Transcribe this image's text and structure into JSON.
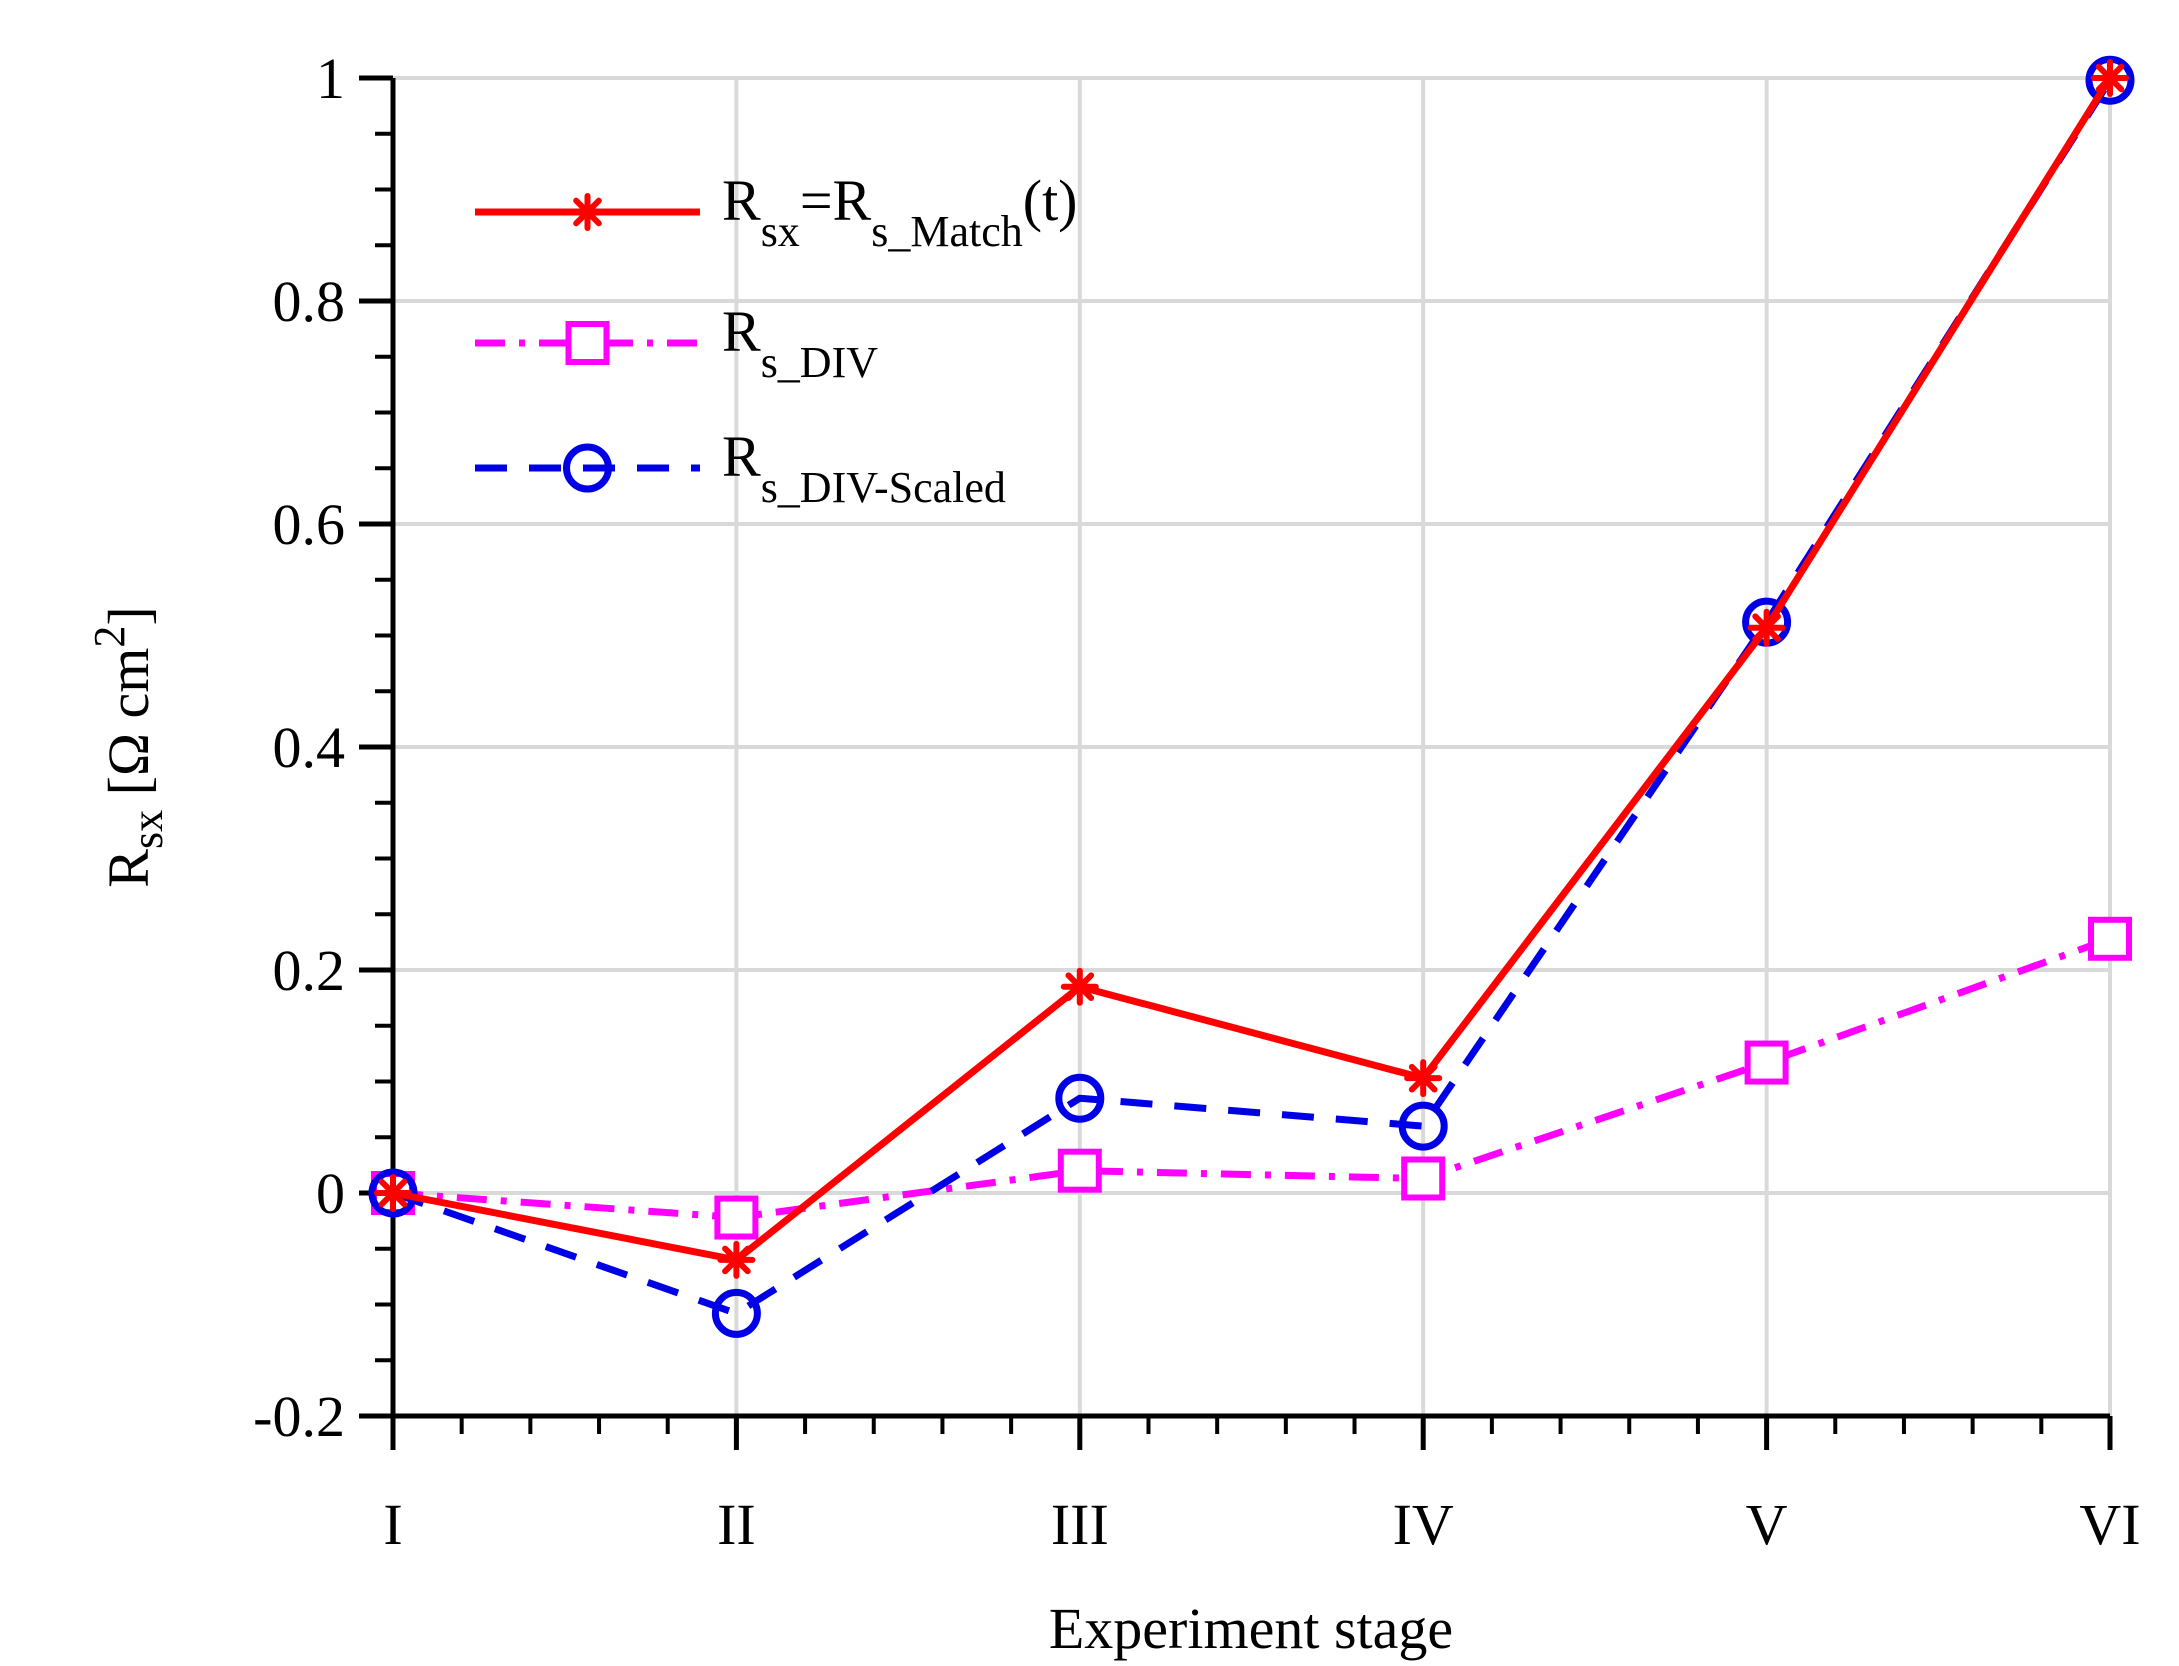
{
  "chart_data": {
    "type": "line",
    "xlabel": "Experiment stage",
    "ylabel": {
      "main": "R",
      "sub": "sx",
      "unit_open": " [Ω cm",
      "unit_sup": "2",
      "unit_close": "]"
    },
    "categories": [
      "I",
      "II",
      "III",
      "IV",
      "V",
      "VI"
    ],
    "ylim": [
      -0.2,
      1
    ],
    "yticks": [
      -0.2,
      0,
      0.2,
      0.4,
      0.6,
      0.8,
      1
    ],
    "ytick_labels": [
      "-0.2",
      "0",
      "0.2",
      "0.4",
      "0.6",
      "0.8",
      "1"
    ],
    "grid": true,
    "legend_position": "top-left",
    "series": [
      {
        "key": "match",
        "legend": {
          "main": "R",
          "sub": "sx",
          "mid": "=R",
          "sub2": "s_Match",
          "tail": "(t)"
        },
        "color": "#ff0000",
        "dash": "solid",
        "marker": "asterisk",
        "values": [
          0,
          -0.06,
          0.185,
          0.103,
          0.507,
          1.0
        ]
      },
      {
        "key": "div",
        "legend": {
          "main": "R",
          "sub": "s_DIV"
        },
        "color": "#ff00ff",
        "dash": "dashdot",
        "marker": "square",
        "values": [
          0,
          -0.022,
          0.02,
          0.013,
          0.117,
          0.228
        ]
      },
      {
        "key": "scaled",
        "legend": {
          "main": "R",
          "sub": "s_DIV-Scaled"
        },
        "color": "#0000e6",
        "dash": "dashed",
        "marker": "circle",
        "values": [
          0,
          -0.108,
          0.085,
          0.06,
          0.512,
          0.998
        ]
      }
    ]
  }
}
